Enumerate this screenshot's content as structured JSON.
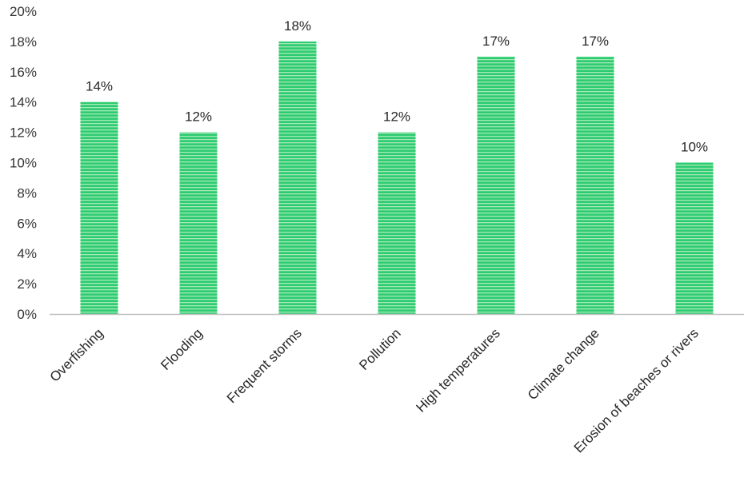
{
  "chart_data": {
    "type": "bar",
    "categories": [
      "Overfishing",
      "Flooding",
      "Frequent storms",
      "Pollution",
      "High temperatures",
      "Climate change",
      "Erosion of beaches or rivers"
    ],
    "values": [
      14,
      12,
      18,
      12,
      17,
      17,
      10
    ],
    "data_labels": [
      "14%",
      "12%",
      "18%",
      "12%",
      "17%",
      "17%",
      "10%"
    ],
    "y_ticks": [
      "0%",
      "2%",
      "4%",
      "6%",
      "8%",
      "10%",
      "12%",
      "14%",
      "16%",
      "18%",
      "20%"
    ],
    "ylim": [
      0,
      20
    ],
    "grid": false,
    "title": "",
    "xlabel": "",
    "ylabel": "",
    "colors": {
      "bar_fill": "#2ecc71",
      "bar_stripe": "#8fe0a8",
      "axis": "#bfbfbf"
    }
  }
}
